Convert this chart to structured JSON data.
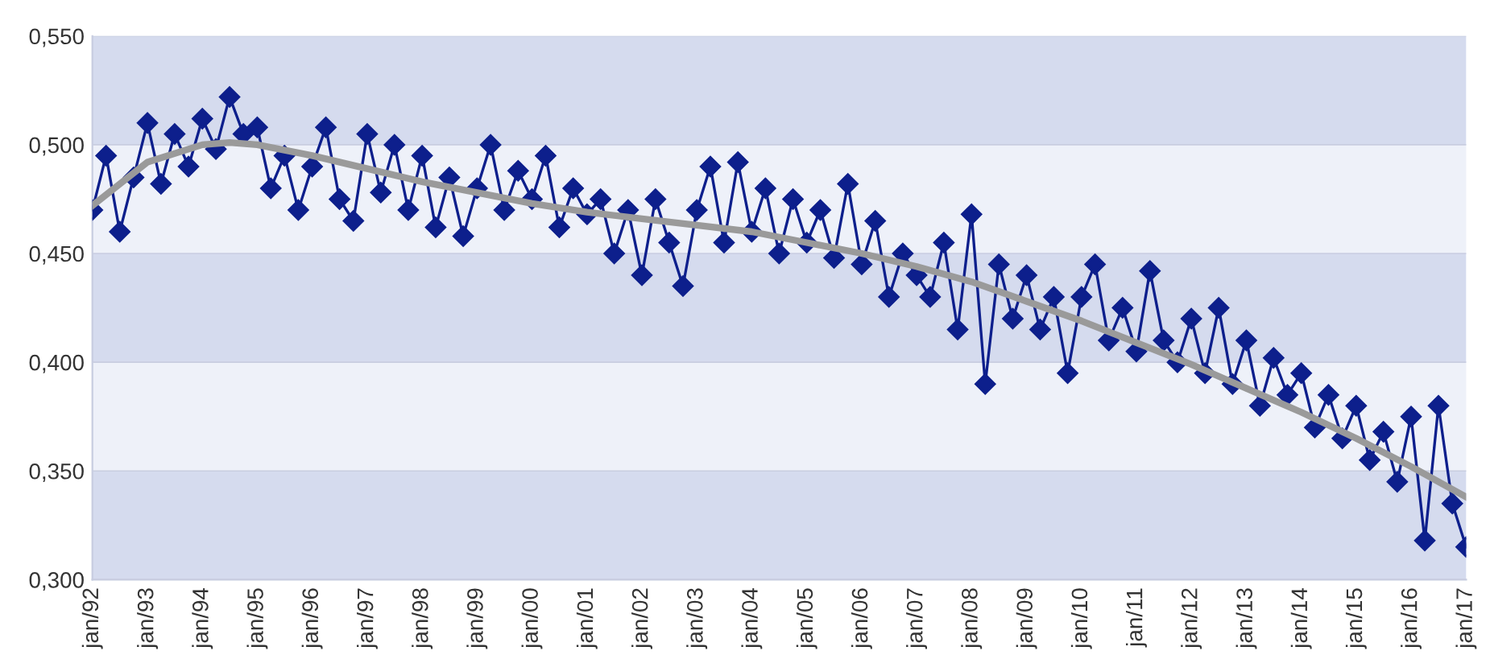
{
  "chart_data": {
    "type": "line",
    "x": [
      "1992-01",
      "1992-04",
      "1992-07",
      "1992-10",
      "1993-01",
      "1993-04",
      "1993-07",
      "1993-10",
      "1994-01",
      "1994-04",
      "1994-07",
      "1994-10",
      "1995-01",
      "1995-04",
      "1995-07",
      "1995-10",
      "1996-01",
      "1996-04",
      "1996-07",
      "1996-10",
      "1997-01",
      "1997-04",
      "1997-07",
      "1997-10",
      "1998-01",
      "1998-04",
      "1998-07",
      "1998-10",
      "1999-01",
      "1999-04",
      "1999-07",
      "1999-10",
      "2000-01",
      "2000-04",
      "2000-07",
      "2000-10",
      "2001-01",
      "2001-04",
      "2001-07",
      "2001-10",
      "2002-01",
      "2002-04",
      "2002-07",
      "2002-10",
      "2003-01",
      "2003-04",
      "2003-07",
      "2003-10",
      "2004-01",
      "2004-04",
      "2004-07",
      "2004-10",
      "2005-01",
      "2005-04",
      "2005-07",
      "2005-10",
      "2006-01",
      "2006-04",
      "2006-07",
      "2006-10",
      "2007-01",
      "2007-04",
      "2007-07",
      "2007-10",
      "2008-01",
      "2008-04",
      "2008-07",
      "2008-10",
      "2009-01",
      "2009-04",
      "2009-07",
      "2009-10",
      "2010-01",
      "2010-04",
      "2010-07",
      "2010-10",
      "2011-01",
      "2011-04",
      "2011-07",
      "2011-10",
      "2012-01",
      "2012-04",
      "2012-07",
      "2012-10",
      "2013-01",
      "2013-04",
      "2013-07",
      "2013-10",
      "2014-01",
      "2014-04",
      "2014-07",
      "2014-10",
      "2015-01",
      "2015-04",
      "2015-07",
      "2015-10",
      "2016-01",
      "2016-04",
      "2016-07",
      "2016-10",
      "2017-01"
    ],
    "series": [
      {
        "color": "#0d1f8c",
        "marker": "diamond",
        "values": [
          0.47,
          0.495,
          0.46,
          0.485,
          0.51,
          0.482,
          0.505,
          0.49,
          0.512,
          0.498,
          0.522,
          0.505,
          0.508,
          0.48,
          0.495,
          0.47,
          0.49,
          0.508,
          0.475,
          0.465,
          0.505,
          0.478,
          0.5,
          0.47,
          0.495,
          0.462,
          0.485,
          0.458,
          0.48,
          0.5,
          0.47,
          0.488,
          0.475,
          0.495,
          0.462,
          0.48,
          0.468,
          0.475,
          0.45,
          0.47,
          0.44,
          0.475,
          0.455,
          0.435,
          0.47,
          0.49,
          0.455,
          0.492,
          0.46,
          0.48,
          0.45,
          0.475,
          0.455,
          0.47,
          0.448,
          0.482,
          0.445,
          0.465,
          0.43,
          0.45,
          0.44,
          0.43,
          0.455,
          0.415,
          0.468,
          0.39,
          0.445,
          0.42,
          0.44,
          0.415,
          0.43,
          0.395,
          0.43,
          0.445,
          0.41,
          0.425,
          0.405,
          0.442,
          0.41,
          0.4,
          0.42,
          0.395,
          0.425,
          0.39,
          0.41,
          0.38,
          0.402,
          0.385,
          0.395,
          0.37,
          0.385,
          0.365,
          0.38,
          0.355,
          0.368,
          0.345,
          0.375,
          0.318,
          0.38,
          0.335,
          0.315
        ]
      },
      {
        "color": "#9a9a9a",
        "marker": "none",
        "x": [
          "1992-01",
          "1993-01",
          "1994-01",
          "1994-07",
          "1995-01",
          "1996-01",
          "1997-01",
          "1998-01",
          "1999-01",
          "2000-01",
          "2001-01",
          "2002-01",
          "2003-01",
          "2004-01",
          "2005-01",
          "2006-01",
          "2007-01",
          "2008-01",
          "2009-01",
          "2010-01",
          "2011-01",
          "2012-01",
          "2013-01",
          "2014-01",
          "2015-01",
          "2016-01",
          "2017-01"
        ],
        "values": [
          0.472,
          0.492,
          0.5,
          0.501,
          0.5,
          0.495,
          0.489,
          0.483,
          0.478,
          0.473,
          0.469,
          0.466,
          0.463,
          0.46,
          0.455,
          0.45,
          0.444,
          0.437,
          0.428,
          0.419,
          0.409,
          0.399,
          0.388,
          0.377,
          0.365,
          0.352,
          0.338
        ]
      }
    ],
    "ylim": [
      0.3,
      0.55
    ],
    "yticks": [
      {
        "value": 0.3,
        "label": "0,300"
      },
      {
        "value": 0.35,
        "label": "0,350"
      },
      {
        "value": 0.4,
        "label": "0,400"
      },
      {
        "value": 0.45,
        "label": "0,450"
      },
      {
        "value": 0.5,
        "label": "0,500"
      },
      {
        "value": 0.55,
        "label": "0,550"
      }
    ],
    "xlim": [
      "1992-01",
      "2017-01"
    ],
    "xticks": [
      {
        "value": "1992-01",
        "label": "jan/92"
      },
      {
        "value": "1993-01",
        "label": "jan/93"
      },
      {
        "value": "1994-01",
        "label": "jan/94"
      },
      {
        "value": "1995-01",
        "label": "jan/95"
      },
      {
        "value": "1996-01",
        "label": "jan/96"
      },
      {
        "value": "1997-01",
        "label": "jan/97"
      },
      {
        "value": "1998-01",
        "label": "jan/98"
      },
      {
        "value": "1999-01",
        "label": "jan/99"
      },
      {
        "value": "2000-01",
        "label": "jan/00"
      },
      {
        "value": "2001-01",
        "label": "jan/01"
      },
      {
        "value": "2002-01",
        "label": "jan/02"
      },
      {
        "value": "2003-01",
        "label": "jan/03"
      },
      {
        "value": "2004-01",
        "label": "jan/04"
      },
      {
        "value": "2005-01",
        "label": "jan/05"
      },
      {
        "value": "2006-01",
        "label": "jan/06"
      },
      {
        "value": "2007-01",
        "label": "jan/07"
      },
      {
        "value": "2008-01",
        "label": "jan/08"
      },
      {
        "value": "2009-01",
        "label": "jan/09"
      },
      {
        "value": "2010-01",
        "label": "jan/10"
      },
      {
        "value": "2011-01",
        "label": "jan/11"
      },
      {
        "value": "2012-01",
        "label": "jan/12"
      },
      {
        "value": "2013-01",
        "label": "jan/13"
      },
      {
        "value": "2014-01",
        "label": "jan/14"
      },
      {
        "value": "2015-01",
        "label": "jan/15"
      },
      {
        "value": "2016-01",
        "label": "jan/16"
      },
      {
        "value": "2017-01",
        "label": "jan/17"
      }
    ],
    "grid": "y",
    "legend": false,
    "line_style": "solid"
  }
}
